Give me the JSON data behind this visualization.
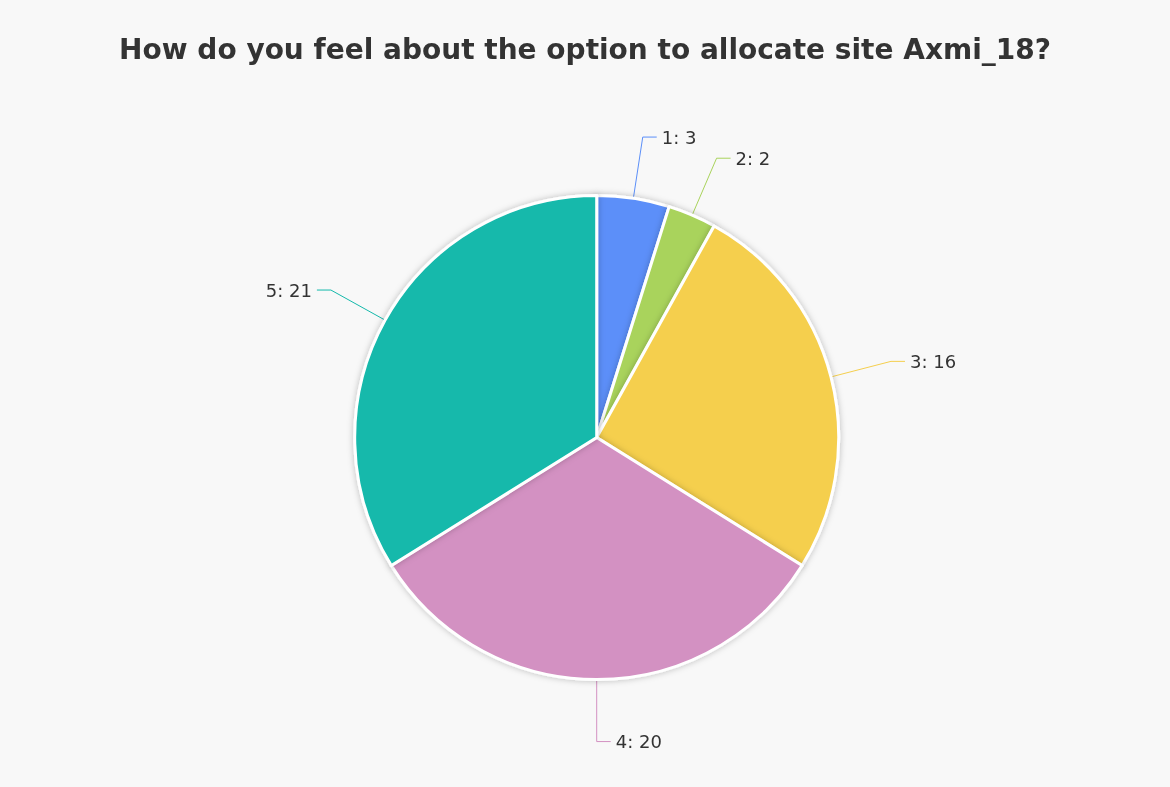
{
  "chart_data": {
    "type": "pie",
    "title": "How do you feel about the option to allocate site Axmi_18?",
    "categories": [
      null,
      null,
      null,
      null,
      null
    ],
    "values": [
      3,
      2,
      16,
      20,
      21
    ],
    "value_labels": [
      "1: 3",
      "2: 2",
      "3: 16",
      "4: 20",
      "5: 21"
    ],
    "colors": [
      "#5b8ff9",
      "#a9d35b",
      "#f5cf4e",
      "#d391c2",
      "#14b9ab"
    ]
  }
}
